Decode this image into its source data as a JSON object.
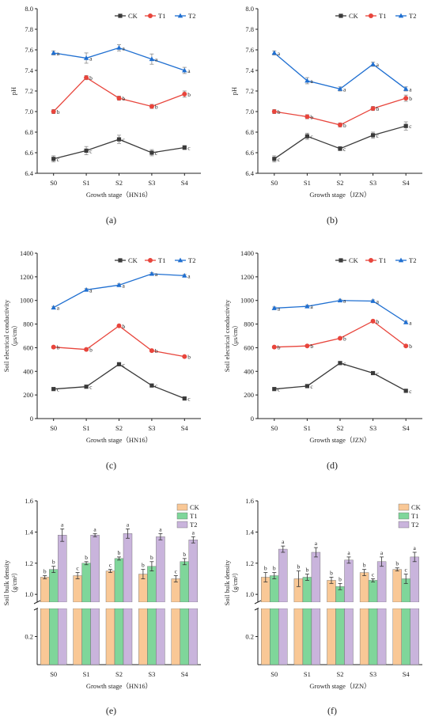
{
  "chart_data": [
    {
      "id": "a",
      "panel_label": "(a)",
      "type": "line",
      "xlabel": "Growth stage（HN16）",
      "ylabel": "pH",
      "categories": [
        "S0",
        "S1",
        "S2",
        "S3",
        "S4"
      ],
      "ylim": [
        6.4,
        8.0
      ],
      "yticks": [
        "6.4",
        "6.6",
        "6.8",
        "7.0",
        "7.2",
        "7.4",
        "7.6",
        "7.8",
        "8.0"
      ],
      "legend_position": "top-right",
      "series": [
        {
          "name": "CK",
          "color": "#3a3a3a",
          "marker": "square",
          "values": [
            6.54,
            6.62,
            6.73,
            6.6,
            6.65
          ],
          "errors": [
            0.03,
            0.04,
            0.04,
            0.03,
            0.02
          ],
          "letters": [
            "c",
            "c",
            "c",
            "c",
            "c"
          ]
        },
        {
          "name": "T1",
          "color": "#e8453c",
          "marker": "circle",
          "values": [
            7.0,
            7.33,
            7.13,
            7.05,
            7.17
          ],
          "errors": [
            0.02,
            0.02,
            0.02,
            0.02,
            0.03
          ],
          "letters": [
            "b",
            "b",
            "b",
            "b",
            "b"
          ]
        },
        {
          "name": "T2",
          "color": "#1f6fd1",
          "marker": "triangle",
          "values": [
            7.57,
            7.52,
            7.62,
            7.51,
            7.4
          ],
          "errors": [
            0.02,
            0.05,
            0.03,
            0.05,
            0.03
          ],
          "letters": [
            "a",
            "a",
            "a",
            "a",
            "a"
          ]
        }
      ]
    },
    {
      "id": "b",
      "panel_label": "(b)",
      "type": "line",
      "xlabel": "Growth stage（JZN）",
      "ylabel": "pH",
      "categories": [
        "S0",
        "S1",
        "S2",
        "S3",
        "S4"
      ],
      "ylim": [
        6.4,
        8.0
      ],
      "yticks": [
        "6.4",
        "6.6",
        "6.8",
        "7.0",
        "7.2",
        "7.4",
        "7.6",
        "7.8",
        "8.0"
      ],
      "legend_position": "top-right",
      "series": [
        {
          "name": "CK",
          "color": "#3a3a3a",
          "marker": "square",
          "values": [
            6.54,
            6.76,
            6.64,
            6.77,
            6.86
          ],
          "errors": [
            0.03,
            0.03,
            0.02,
            0.03,
            0.04
          ],
          "letters": [
            "c",
            "c",
            "c",
            "c",
            "c"
          ]
        },
        {
          "name": "T1",
          "color": "#e8453c",
          "marker": "circle",
          "values": [
            7.0,
            6.95,
            6.87,
            7.03,
            7.13
          ],
          "errors": [
            0.02,
            0.02,
            0.02,
            0.02,
            0.03
          ],
          "letters": [
            "b",
            "b",
            "b",
            "b",
            "b"
          ]
        },
        {
          "name": "T2",
          "color": "#1f6fd1",
          "marker": "triangle",
          "values": [
            7.57,
            7.3,
            7.22,
            7.46,
            7.22
          ],
          "errors": [
            0.02,
            0.03,
            0.02,
            0.02,
            0.02
          ],
          "letters": [
            "a",
            "a",
            "a",
            "a",
            "a"
          ]
        }
      ]
    },
    {
      "id": "c",
      "panel_label": "(c)",
      "type": "line",
      "xlabel": "Growth stage（HN16）",
      "ylabel": "Soil electrical conductivity",
      "ylabel_unit": "（μs/cm）",
      "categories": [
        "S0",
        "S1",
        "S2",
        "S3",
        "S4"
      ],
      "ylim": [
        0,
        1400
      ],
      "yticks": [
        "0",
        "200",
        "400",
        "600",
        "800",
        "1000",
        "1200",
        "1400"
      ],
      "legend_position": "top-right",
      "series": [
        {
          "name": "CK",
          "color": "#3a3a3a",
          "marker": "square",
          "values": [
            250,
            270,
            460,
            280,
            170
          ],
          "errors": [
            8,
            8,
            10,
            8,
            8
          ],
          "letters": [
            "c",
            "c",
            "c",
            "c",
            "c"
          ]
        },
        {
          "name": "T1",
          "color": "#e8453c",
          "marker": "circle",
          "values": [
            605,
            585,
            785,
            575,
            525
          ],
          "errors": [
            8,
            8,
            10,
            8,
            8
          ],
          "letters": [
            "b",
            "b",
            "b",
            "b",
            "b"
          ]
        },
        {
          "name": "T2",
          "color": "#1f6fd1",
          "marker": "triangle",
          "values": [
            940,
            1090,
            1130,
            1225,
            1210
          ],
          "errors": [
            10,
            10,
            10,
            10,
            10
          ],
          "letters": [
            "a",
            "a",
            "a",
            "a",
            "a"
          ]
        }
      ]
    },
    {
      "id": "d",
      "panel_label": "(d)",
      "type": "line",
      "xlabel": "Growth stage（JZN）",
      "ylabel": "Soil electrical conductivity",
      "ylabel_unit": "（μs/cm）",
      "categories": [
        "S0",
        "S1",
        "S2",
        "S3",
        "S4"
      ],
      "ylim": [
        0,
        1400
      ],
      "yticks": [
        "0",
        "200",
        "400",
        "600",
        "800",
        "1000",
        "1200",
        "1400"
      ],
      "legend_position": "top-right",
      "series": [
        {
          "name": "CK",
          "color": "#3a3a3a",
          "marker": "square",
          "values": [
            250,
            275,
            470,
            385,
            235
          ],
          "errors": [
            8,
            8,
            10,
            8,
            8
          ],
          "letters": [
            "c",
            "c",
            "c",
            "c",
            "c"
          ]
        },
        {
          "name": "T1",
          "color": "#e8453c",
          "marker": "circle",
          "values": [
            605,
            615,
            680,
            825,
            615
          ],
          "errors": [
            8,
            8,
            10,
            8,
            8
          ],
          "letters": [
            "b",
            "b",
            "b",
            "b",
            "b"
          ]
        },
        {
          "name": "T2",
          "color": "#1f6fd1",
          "marker": "triangle",
          "values": [
            935,
            950,
            1000,
            995,
            815
          ],
          "errors": [
            10,
            10,
            10,
            10,
            10
          ],
          "letters": [
            "a",
            "a",
            "a",
            "a",
            "a"
          ]
        }
      ]
    },
    {
      "id": "e",
      "panel_label": "(e)",
      "type": "bar",
      "xlabel": "Growth stage（HN16）",
      "ylabel": "Soil bulk density",
      "ylabel_unit": "（g/cm³）",
      "categories": [
        "S0",
        "S1",
        "S2",
        "S3",
        "S4"
      ],
      "ylim_lower": [
        0,
        0.4
      ],
      "ylim_upper": [
        0.95,
        1.6
      ],
      "yticks_lower": [
        "0.2"
      ],
      "yticks_upper": [
        "1.0",
        "1.2",
        "1.4",
        "1.6"
      ],
      "legend_position": "top-right",
      "series": [
        {
          "name": "CK",
          "color": "#f9c896",
          "values": [
            1.11,
            1.12,
            1.15,
            1.13,
            1.1
          ],
          "errors": [
            0.01,
            0.02,
            0.01,
            0.03,
            0.02
          ],
          "letters": [
            "b",
            "c",
            "c",
            "b",
            "c"
          ]
        },
        {
          "name": "T1",
          "color": "#7fd69a",
          "values": [
            1.16,
            1.2,
            1.23,
            1.18,
            1.21
          ],
          "errors": [
            0.02,
            0.01,
            0.01,
            0.03,
            0.02
          ],
          "letters": [
            "b",
            "b",
            "b",
            "b",
            "b"
          ]
        },
        {
          "name": "T2",
          "color": "#c9b4dc",
          "values": [
            1.38,
            1.38,
            1.39,
            1.37,
            1.35
          ],
          "errors": [
            0.04,
            0.01,
            0.03,
            0.02,
            0.02
          ],
          "letters": [
            "a",
            "a",
            "a",
            "a",
            "a"
          ]
        }
      ]
    },
    {
      "id": "f",
      "panel_label": "(f)",
      "type": "bar",
      "xlabel": "Growth stage（JZN）",
      "ylabel": "Soil bulk density",
      "ylabel_unit": "（g/cm³）",
      "categories": [
        "S0",
        "S1",
        "S2",
        "S3",
        "S4"
      ],
      "ylim_lower": [
        0,
        0.4
      ],
      "ylim_upper": [
        0.95,
        1.6
      ],
      "yticks_lower": [
        "0.2"
      ],
      "yticks_upper": [
        "1.0",
        "1.2",
        "1.4",
        "1.6"
      ],
      "legend_position": "top-right",
      "series": [
        {
          "name": "CK",
          "color": "#f9c896",
          "values": [
            1.11,
            1.1,
            1.09,
            1.14,
            1.16
          ],
          "errors": [
            0.03,
            0.05,
            0.02,
            0.02,
            0.01
          ],
          "letters": [
            "b",
            "b",
            "b",
            "b",
            "b"
          ]
        },
        {
          "name": "T1",
          "color": "#7fd69a",
          "values": [
            1.12,
            1.11,
            1.05,
            1.09,
            1.1
          ],
          "errors": [
            0.02,
            0.02,
            0.02,
            0.01,
            0.03
          ],
          "letters": [
            "b",
            "b",
            "b",
            "c",
            "c"
          ]
        },
        {
          "name": "T2",
          "color": "#c9b4dc",
          "values": [
            1.29,
            1.27,
            1.22,
            1.21,
            1.24
          ],
          "errors": [
            0.02,
            0.03,
            0.02,
            0.03,
            0.03
          ],
          "letters": [
            "a",
            "a",
            "a",
            "a",
            "a"
          ]
        }
      ]
    }
  ]
}
